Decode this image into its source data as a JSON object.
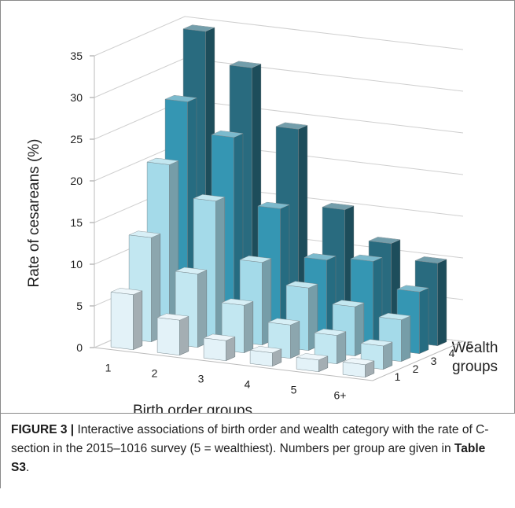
{
  "chart_data": {
    "type": "bar3d",
    "categories": [
      "1",
      "2",
      "3",
      "4",
      "5",
      "6+"
    ],
    "series": [
      {
        "name": "1",
        "color": "#e3f2f8",
        "values": [
          6.6,
          4.2,
          2.4,
          1.6,
          1.4,
          1.5
        ]
      },
      {
        "name": "2",
        "color": "#c2e7f1",
        "values": [
          12.5,
          8.8,
          5.7,
          4.0,
          3.4,
          2.8
        ]
      },
      {
        "name": "3",
        "color": "#a4dae9",
        "values": [
          20.3,
          16.6,
          9.9,
          7.5,
          5.9,
          5.0
        ]
      },
      {
        "name": "4",
        "color": "#3596b3",
        "values": [
          26.9,
          23.3,
          15.4,
          9.9,
          10.4,
          7.4
        ]
      },
      {
        "name": "5",
        "color": "#296b7f",
        "values": [
          34.4,
          30.7,
          24.0,
          15.0,
          11.6,
          9.9
        ]
      }
    ],
    "ylim": [
      0,
      35
    ],
    "yticks": [
      0,
      5,
      10,
      15,
      20,
      25,
      30,
      35
    ],
    "grid": true,
    "x_label": "Birth order groups",
    "y_label": "Rate of cesareans (%)",
    "z_label": "Wealth groups"
  },
  "caption": {
    "label": "FIGURE 3 |",
    "text": "Interactive associations of birth order and wealth category with the rate of C-section in the 2015–1016 survey (5 = wealthiest). Numbers per group are given in ",
    "ref": "Table S3",
    "end": "."
  }
}
